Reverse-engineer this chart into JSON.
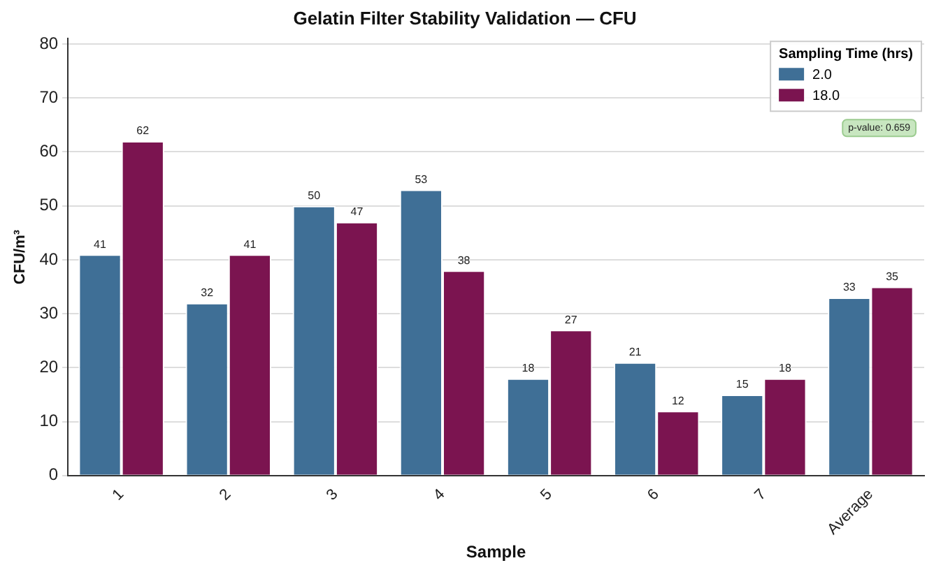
{
  "chart_data": {
    "type": "bar",
    "title": "Gelatin Filter Stability Validation — CFU",
    "xlabel": "Sample",
    "ylabel": "CFU/m³",
    "legend_title": "Sampling Time (hrs)",
    "categories": [
      "1",
      "2",
      "3",
      "4",
      "5",
      "6",
      "7",
      "Average"
    ],
    "series": [
      {
        "name": "2.0",
        "color": "#3f6f96",
        "values": [
          41,
          32,
          50,
          53,
          18,
          21,
          15,
          33
        ]
      },
      {
        "name": "18.0",
        "color": "#7b1450",
        "values": [
          62,
          41,
          47,
          38,
          27,
          12,
          18,
          35
        ]
      }
    ],
    "ylim": [
      0,
      81
    ],
    "yticks": [
      0,
      10,
      20,
      30,
      40,
      50,
      60,
      70,
      80
    ],
    "grid": "y",
    "legend": "top right",
    "data_labels": true,
    "annotations": [
      "p-value: 0.659"
    ]
  }
}
